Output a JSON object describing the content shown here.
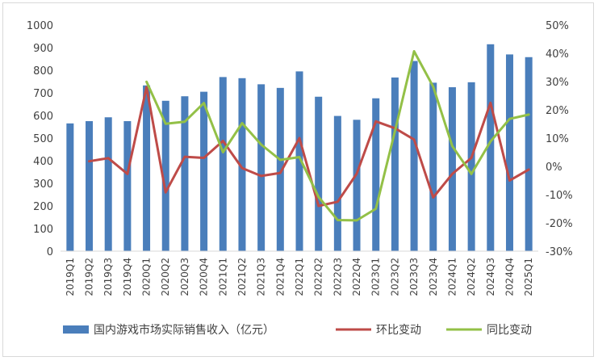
{
  "chart_data": {
    "type": "bar",
    "categories": [
      "2019Q1",
      "2019Q2",
      "2019Q3",
      "2019Q4",
      "2020Q1",
      "2020Q2",
      "2020Q3",
      "2020Q4",
      "2021Q1",
      "2021Q2",
      "2021Q3",
      "2021Q4",
      "2022Q1",
      "2022Q2",
      "2022Q3",
      "2022Q4",
      "2023Q1",
      "2023Q2",
      "2023Q3",
      "2023Q4",
      "2024Q1",
      "2024Q2",
      "2024Q3",
      "2024Q4",
      "2025Q1"
    ],
    "y_left": {
      "ylim": [
        0,
        1000
      ],
      "ticks": [
        "0",
        "100",
        "200",
        "300",
        "400",
        "500",
        "600",
        "700",
        "800",
        "900",
        "1000"
      ]
    },
    "y_right": {
      "ylim": [
        -30,
        50
      ],
      "ticks": [
        "-30%",
        "-20%",
        "-10%",
        "0%",
        "10%",
        "20%",
        "30%",
        "40%",
        "50%"
      ]
    },
    "series": [
      {
        "name": "国内游戏市场实际销售收入（亿元）",
        "kind": "bar",
        "axis": "left",
        "color": "#4a7ebb",
        "values": [
          565,
          575,
          592,
          575,
          733,
          665,
          685,
          705,
          770,
          765,
          738,
          722,
          795,
          683,
          598,
          581,
          676,
          768,
          841,
          745,
          725,
          747,
          915,
          870,
          858
        ]
      },
      {
        "name": "环比变动",
        "kind": "line",
        "axis": "right",
        "color": "#be4b48",
        "values": [
          null,
          1.8,
          2.9,
          -2.7,
          28.0,
          -9.2,
          3.4,
          3.0,
          9.0,
          -0.6,
          -3.4,
          -2.3,
          10.0,
          -14.0,
          -12.5,
          -2.6,
          15.9,
          13.5,
          9.5,
          -11.0,
          -2.7,
          3.0,
          22.5,
          -5.0,
          -1.1
        ]
      },
      {
        "name": "同比变动",
        "kind": "line",
        "axis": "right",
        "color": "#93c047",
        "values": [
          null,
          null,
          null,
          null,
          29.9,
          15.1,
          15.8,
          22.4,
          5.0,
          15.3,
          7.7,
          2.3,
          3.3,
          -10.8,
          -19.0,
          -19.1,
          -15.0,
          12.5,
          40.7,
          28.2,
          7.2,
          -2.7,
          8.8,
          16.8,
          18.3
        ]
      }
    ]
  }
}
